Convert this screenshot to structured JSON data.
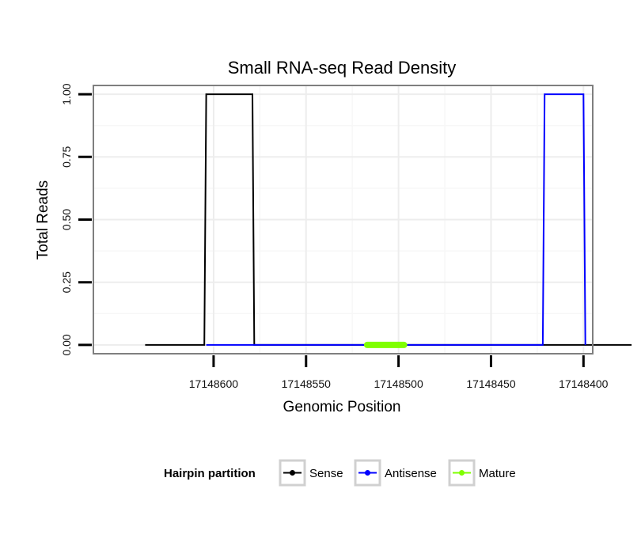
{
  "chart_data": {
    "type": "line",
    "title": "Small RNA-seq Read Density",
    "xlabel": "Genomic Position",
    "ylabel": "Total Reads",
    "x_reversed": true,
    "xlim": [
      17148665,
      17148395
    ],
    "ylim": [
      -0.035,
      1.035
    ],
    "x_ticks": [
      17148600,
      17148550,
      17148500,
      17148450,
      17148400
    ],
    "x_tick_labels": [
      "17148600",
      "17148550",
      "17148500",
      "17148450",
      "17148400"
    ],
    "y_ticks": [
      0,
      0.25,
      0.5,
      0.75,
      1
    ],
    "y_tick_labels": [
      "0.00",
      "0.25",
      "0.50",
      "0.75",
      "1.00"
    ],
    "grid": true,
    "legend_position": "bottom",
    "legend_title": "Hairpin partition",
    "series": [
      {
        "name": "Sense",
        "color": "#000000",
        "points": [
          {
            "x": 17148637,
            "y": 0
          },
          {
            "x": 17148605,
            "y": 0
          },
          {
            "x": 17148604,
            "y": 1
          },
          {
            "x": 17148579,
            "y": 1
          },
          {
            "x": 17148578,
            "y": 0
          },
          {
            "x": 17148374,
            "y": 0
          }
        ]
      },
      {
        "name": "Antisense",
        "color": "#0000ff",
        "points": [
          {
            "x": 17148604,
            "y": 0
          },
          {
            "x": 17148578,
            "y": 0
          },
          {
            "x": 17148422,
            "y": 0
          },
          {
            "x": 17148421,
            "y": 1
          },
          {
            "x": 17148400,
            "y": 1
          },
          {
            "x": 17148399,
            "y": 0
          }
        ]
      },
      {
        "name": "Mature",
        "color": "#7fff00",
        "points": [
          {
            "x": 17148517,
            "y": 0
          },
          {
            "x": 17148497,
            "y": 0
          }
        ]
      }
    ]
  }
}
